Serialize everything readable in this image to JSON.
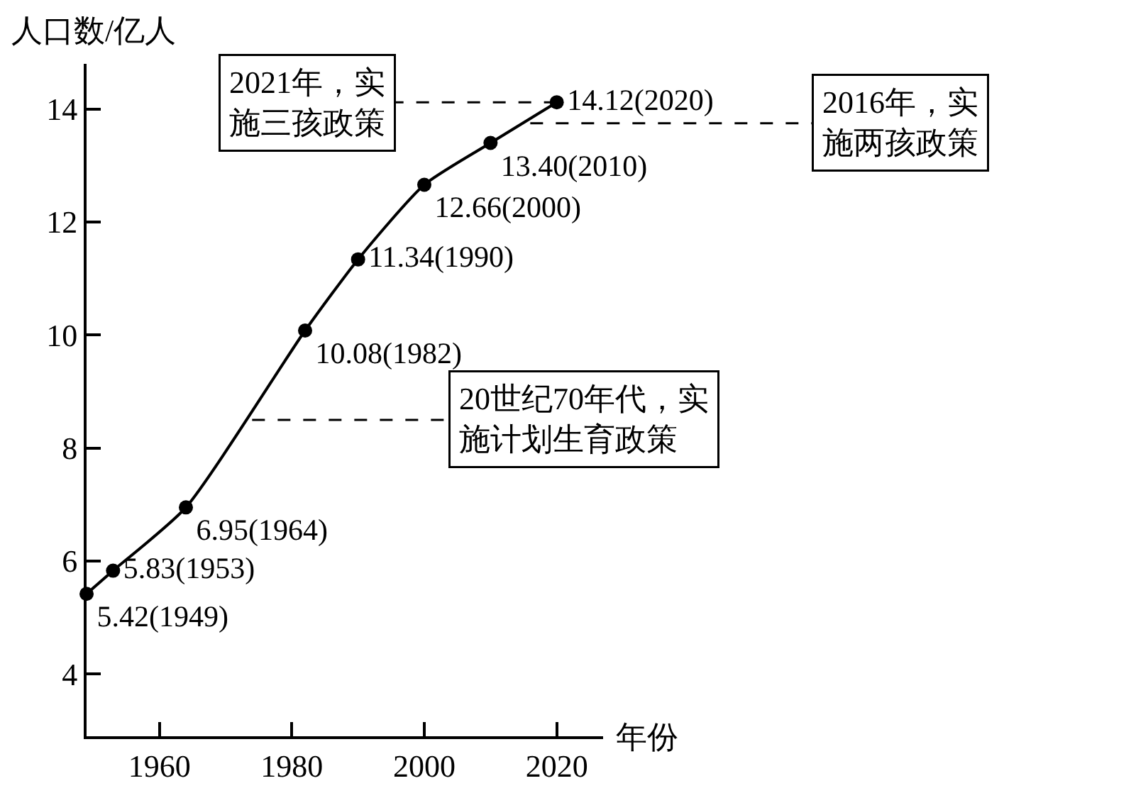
{
  "chart_data": {
    "type": "line",
    "xlabel": "年份",
    "ylabel": "人口数/亿人",
    "x": [
      1949,
      1953,
      1964,
      1982,
      1990,
      2000,
      2010,
      2020
    ],
    "series": [
      {
        "color": "#000000",
        "values": [
          5.42,
          5.83,
          6.95,
          10.08,
          11.34,
          12.66,
          13.4,
          14.12
        ],
        "value_labels": [
          "5.42(1949)",
          "5.83(1953)",
          "6.95(1964)",
          "10.08(1982)",
          "11.34(1990)",
          "12.66(2000)",
          "13.40(2010)",
          "14.12(2020)"
        ]
      }
    ],
    "xlim": [
      1949,
      2027
    ],
    "xticks": [
      1960,
      1980,
      2000,
      2020
    ],
    "ylim": [
      2.9,
      14.8
    ],
    "yticks": [
      4,
      6,
      8,
      10,
      12,
      14
    ],
    "marker": "circle",
    "line_style": "solid",
    "grid": false,
    "annotations": [
      {
        "text": "20世纪70年代，实施计划生育政策",
        "x": 1974,
        "y": 8.5
      },
      {
        "text": "2021年，实施三孩政策",
        "x": 2020,
        "y": 14.12
      },
      {
        "text": "2016年，实施两孩政策",
        "x": 2016,
        "y": 13.75
      }
    ]
  }
}
